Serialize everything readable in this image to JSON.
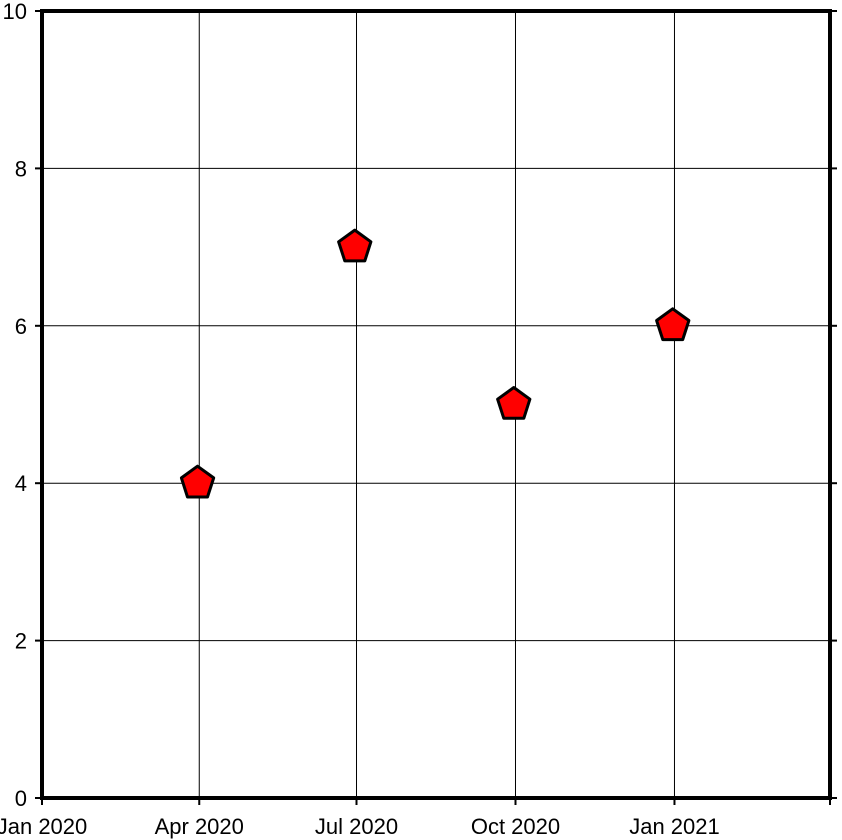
{
  "chart_data": {
    "type": "scatter",
    "title": "",
    "xlabel": "",
    "ylabel": "",
    "x_axis": {
      "kind": "date",
      "range": [
        "2020-01-01",
        "2021-04-01"
      ],
      "ticks": [
        {
          "date": "2020-01-01",
          "label": "Jan 2020"
        },
        {
          "date": "2020-04-01",
          "label": "Apr 2020"
        },
        {
          "date": "2020-07-01",
          "label": "Jul 2020"
        },
        {
          "date": "2020-10-01",
          "label": "Oct 2020"
        },
        {
          "date": "2021-01-01",
          "label": "Jan 2021"
        },
        {
          "date": "2021-04-01",
          "label": ""
        }
      ]
    },
    "y_axis": {
      "range": [
        0,
        10
      ],
      "ticks": [
        0,
        2,
        4,
        6,
        8,
        10
      ]
    },
    "grid": true,
    "marker": {
      "shape": "pentagon",
      "fill": "#ff0000",
      "stroke": "#000000"
    },
    "points": [
      {
        "x": "2020-03-31",
        "y": 4
      },
      {
        "x": "2020-06-30",
        "y": 7
      },
      {
        "x": "2020-09-30",
        "y": 5
      },
      {
        "x": "2020-12-31",
        "y": 6
      }
    ]
  }
}
